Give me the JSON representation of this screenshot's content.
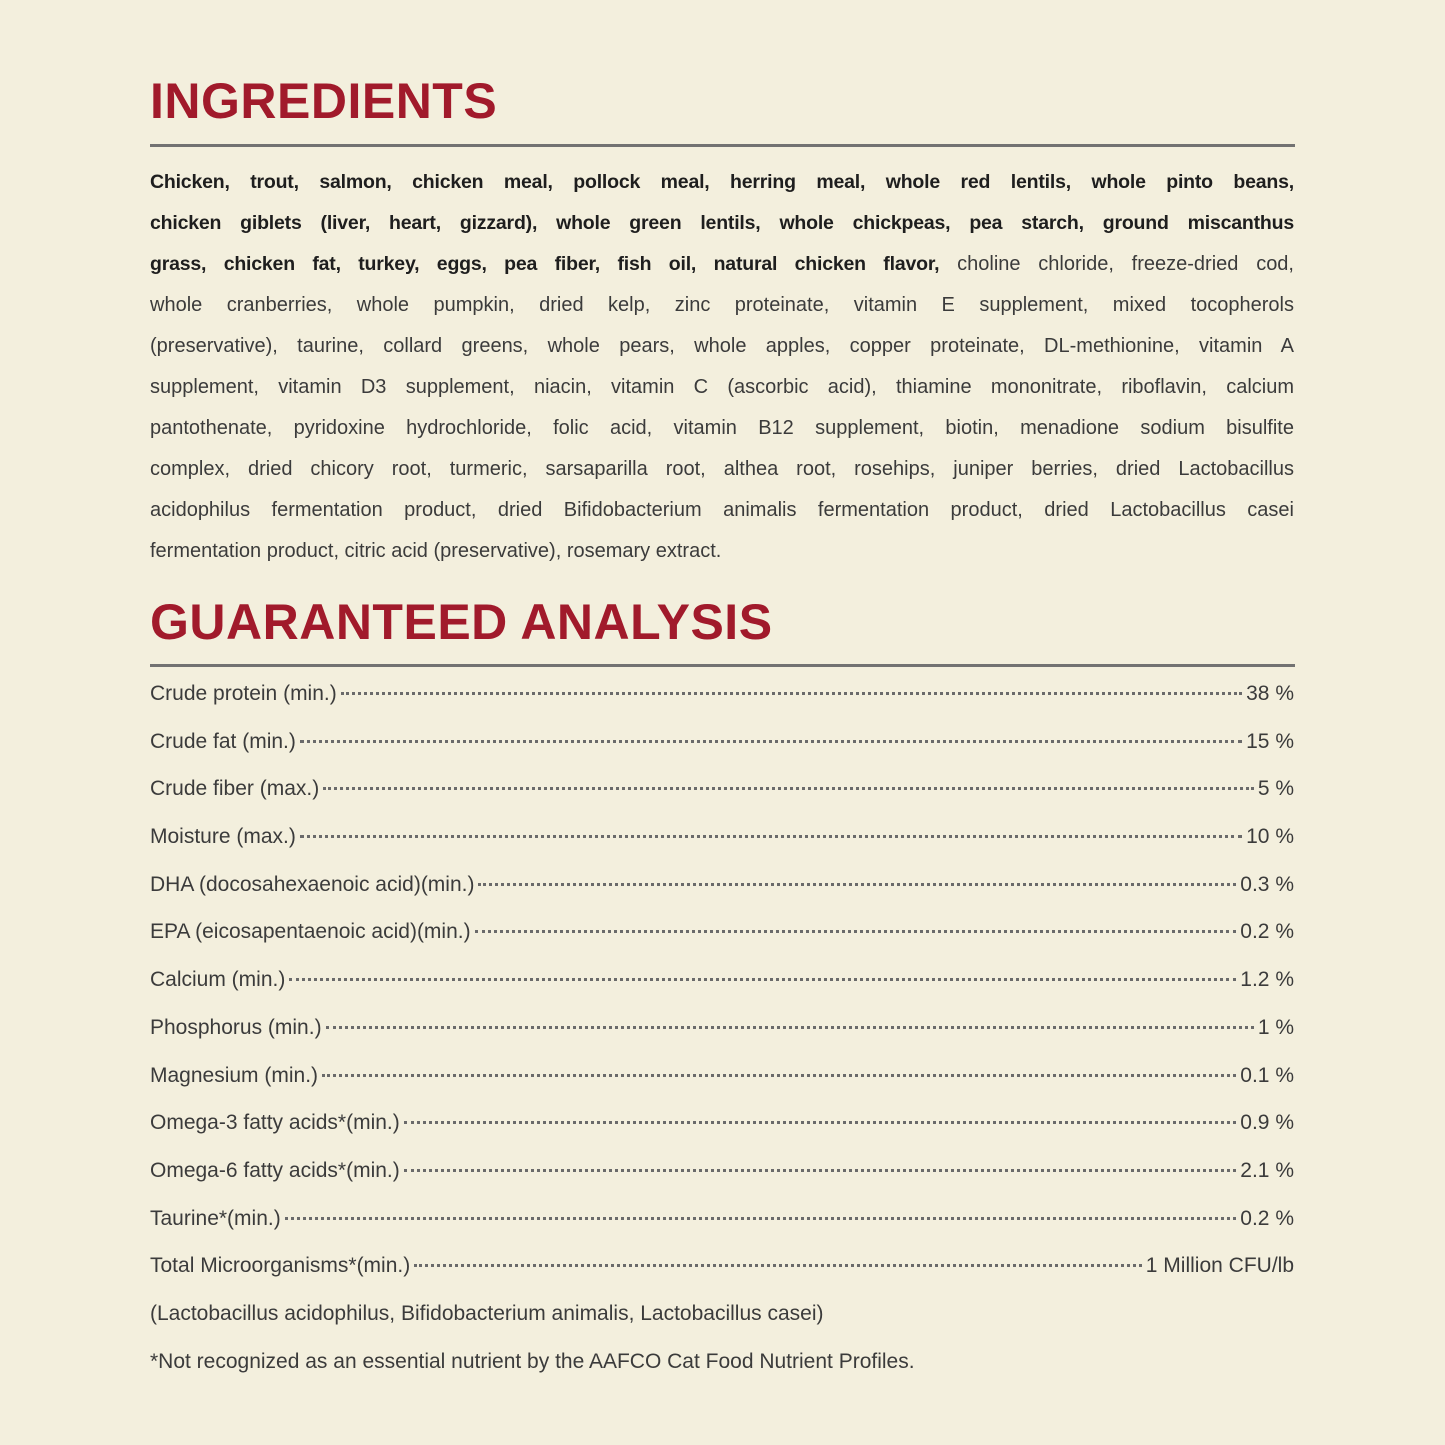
{
  "ingredients": {
    "title": "INGREDIENTS",
    "lines": [
      [
        {
          "bold": true,
          "text": "Chicken, trout, salmon, chicken meal, pollock meal, herring meal, whole red lentils, whole pinto beans,"
        }
      ],
      [
        {
          "bold": true,
          "text": "chicken giblets (liver, heart, gizzard), whole green lentils, whole chickpeas, pea starch, ground miscanthus"
        }
      ],
      [
        {
          "bold": true,
          "text": "grass, chicken fat, turkey, eggs, pea fiber, fish oil, natural chicken flavor,"
        },
        {
          "bold": false,
          "text": " choline chloride, freeze-dried cod,"
        }
      ],
      [
        {
          "bold": false,
          "text": "whole cranberries, whole pumpkin, dried kelp, zinc proteinate, vitamin E supplement, mixed tocopherols"
        }
      ],
      [
        {
          "bold": false,
          "text": "(preservative), taurine, collard greens, whole pears, whole apples, copper proteinate, DL-methionine, vitamin A"
        }
      ],
      [
        {
          "bold": false,
          "text": "supplement, vitamin D3 supplement, niacin, vitamin C (ascorbic acid), thiamine mononitrate, riboflavin, calcium"
        }
      ],
      [
        {
          "bold": false,
          "text": "pantothenate, pyridoxine hydrochloride, folic acid, vitamin B12 supplement, biotin, menadione sodium bisulfite"
        }
      ],
      [
        {
          "bold": false,
          "text": "complex, dried chicory root, turmeric, sarsaparilla root, althea root, rosehips, juniper berries, dried Lactobacillus"
        }
      ],
      [
        {
          "bold": false,
          "text": "acidophilus fermentation product, dried Bifidobacterium animalis fermentation product, dried Lactobacillus casei"
        }
      ],
      [
        {
          "bold": false,
          "text": "fermentation product, citric acid (preservative), rosemary extract."
        }
      ]
    ]
  },
  "analysis": {
    "title": "GUARANTEED ANALYSIS",
    "rows": [
      {
        "label": "Crude protein (min.)",
        "value": "38 %"
      },
      {
        "label": "Crude fat (min.)",
        "value": "15 %"
      },
      {
        "label": "Crude fiber (max.)",
        "value": "5 %"
      },
      {
        "label": "Moisture (max.)",
        "value": "10 %"
      },
      {
        "label": "DHA (docosahexaenoic acid)(min.)",
        "value": "0.3 %"
      },
      {
        "label": "EPA (eicosapentaenoic acid)(min.)",
        "value": "0.2 %"
      },
      {
        "label": "Calcium (min.)",
        "value": "1.2 %"
      },
      {
        "label": "Phosphorus (min.)",
        "value": "1 %"
      },
      {
        "label": "Magnesium (min.)",
        "value": "0.1 %"
      },
      {
        "label": "Omega-3 fatty acids*(min.)",
        "value": "0.9 %"
      },
      {
        "label": "Omega-6 fatty acids*(min.)",
        "value": "2.1 %"
      },
      {
        "label": "Taurine*(min.)",
        "value": "0.2 %"
      },
      {
        "label": "Total Microorganisms*(min.)",
        "value": "1 Million CFU/lb"
      }
    ],
    "strains_note": "(Lactobacillus acidophilus, Bifidobacterium animalis, Lactobacillus casei)",
    "footnote": "*Not recognized as an essential nutrient by the AAFCO Cat Food Nutrient Profiles."
  },
  "colors": {
    "heading": "#a11a2b",
    "background": "#f3efdd",
    "rule": "#727272"
  }
}
